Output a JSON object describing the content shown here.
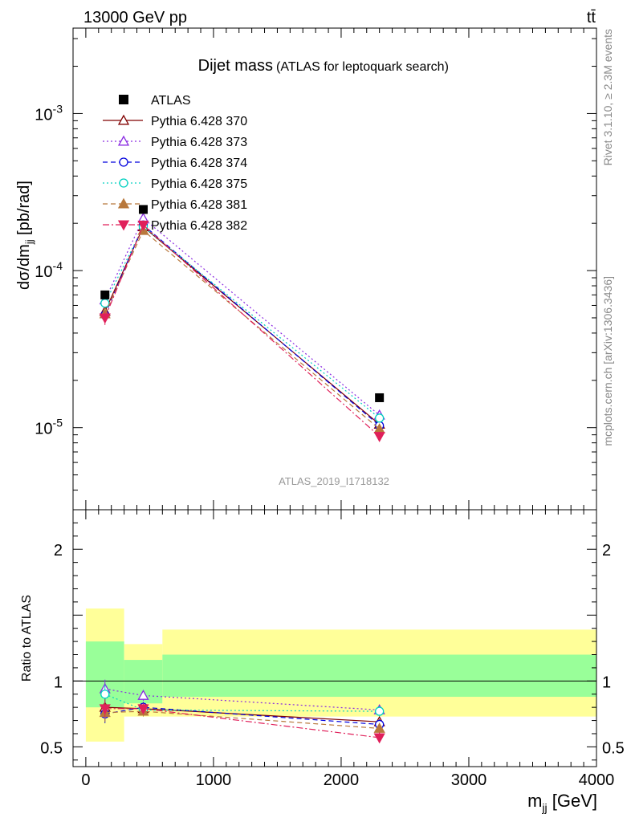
{
  "header": {
    "left": "13000 GeV pp",
    "right": "tt̄"
  },
  "side": {
    "rivet": "Rivet 3.1.10, ≥ 2.3M events",
    "mcplots": "mcplots.cern.ch [arXiv:1306.3436]"
  },
  "chart_data": [
    {
      "type": "line",
      "title_main": "Dijet mass",
      "title_sub": "(ATLAS for leptoquark search)",
      "analysis_label": "ATLAS_2019_I1718132",
      "ylabel": "dσ/dm_jj [pb/rad]",
      "yscale": "log",
      "ylim": [
        3e-06,
        0.0035
      ],
      "xlim": [
        -100,
        4000
      ],
      "yticks": [
        {
          "value": 1e-05,
          "label": "10^-5"
        },
        {
          "value": 0.0001,
          "label": "10^-4"
        },
        {
          "value": 0.001,
          "label": "10^-3"
        }
      ],
      "legend_position": "top-left",
      "x": [
        150,
        450,
        2300
      ],
      "data": {
        "name": "ATLAS",
        "values": [
          7e-05,
          0.000245,
          1.55e-05
        ],
        "color": "#000000"
      },
      "series": [
        {
          "name": "Pythia 6.428 370",
          "values": [
            5.5e-05,
            0.00019,
            1.05e-05
          ],
          "errors": [
            5e-06,
            1e-05,
            6e-07
          ],
          "color": "#800000",
          "marker": "triangle-up-open",
          "dash": "solid"
        },
        {
          "name": "Pythia 6.428 373",
          "values": [
            6.5e-05,
            0.000215,
            1.2e-05
          ],
          "errors": [
            5e-06,
            1e-05,
            6e-07
          ],
          "color": "#8a2be2",
          "marker": "triangle-up-open",
          "dash": "dotted"
        },
        {
          "name": "Pythia 6.428 374",
          "values": [
            5.2e-05,
            0.000195,
            1.03e-05
          ],
          "errors": [
            5e-06,
            1e-05,
            6e-07
          ],
          "color": "#0000dd",
          "marker": "circle-open",
          "dash": "dashed"
        },
        {
          "name": "Pythia 6.428 375",
          "values": [
            6.2e-05,
            0.00019,
            1.15e-05
          ],
          "errors": [
            5e-06,
            1e-05,
            6e-07
          ],
          "color": "#00d0c0",
          "marker": "circle-open",
          "dash": "dotted"
        },
        {
          "name": "Pythia 6.428 381",
          "values": [
            5.3e-05,
            0.00018,
            9.8e-06
          ],
          "errors": [
            5e-06,
            1e-05,
            6e-07
          ],
          "color": "#b8783c",
          "marker": "triangle-up-filled",
          "dash": "dashed"
        },
        {
          "name": "Pythia 6.428 382",
          "values": [
            5e-05,
            0.000195,
            8.8e-06
          ],
          "errors": [
            5e-06,
            1e-05,
            6e-07
          ],
          "color": "#e0205a",
          "marker": "triangle-down-filled",
          "dash": "dashdot"
        }
      ]
    },
    {
      "type": "line",
      "ylabel": "Ratio to ATLAS",
      "xlabel": "m_jj [GeV]",
      "xlim": [
        -100,
        4000
      ],
      "ylim": [
        0.35,
        2.3
      ],
      "xticks": [
        0,
        1000,
        2000,
        3000,
        4000
      ],
      "yticks_labeled": [
        0.5,
        1,
        2
      ],
      "bands": [
        {
          "x_range": [
            0,
            300
          ],
          "yellow": [
            0.54,
            1.55
          ],
          "green": [
            0.8,
            1.3
          ]
        },
        {
          "x_range": [
            300,
            600
          ],
          "yellow": [
            0.73,
            1.28
          ],
          "green": [
            0.83,
            1.16
          ]
        },
        {
          "x_range": [
            600,
            4000
          ],
          "yellow": [
            0.73,
            1.39
          ],
          "green": [
            0.88,
            1.2
          ]
        }
      ],
      "x": [
        150,
        450,
        2300
      ],
      "series": [
        {
          "name": "Pythia 6.428 370",
          "values": [
            0.8,
            0.79,
            0.69
          ],
          "errors": [
            0.07,
            0.04,
            0.04
          ]
        },
        {
          "name": "Pythia 6.428 373",
          "values": [
            0.94,
            0.89,
            0.78
          ],
          "errors": [
            0.07,
            0.04,
            0.04
          ]
        },
        {
          "name": "Pythia 6.428 374",
          "values": [
            0.75,
            0.8,
            0.67
          ],
          "errors": [
            0.07,
            0.04,
            0.04
          ]
        },
        {
          "name": "Pythia 6.428 375",
          "values": [
            0.9,
            0.78,
            0.77
          ],
          "errors": [
            0.07,
            0.04,
            0.04
          ]
        },
        {
          "name": "Pythia 6.428 381",
          "values": [
            0.76,
            0.77,
            0.64
          ],
          "errors": [
            0.07,
            0.04,
            0.04
          ]
        },
        {
          "name": "Pythia 6.428 382",
          "values": [
            0.79,
            0.79,
            0.57
          ],
          "errors": [
            0.07,
            0.04,
            0.04
          ]
        }
      ]
    }
  ]
}
